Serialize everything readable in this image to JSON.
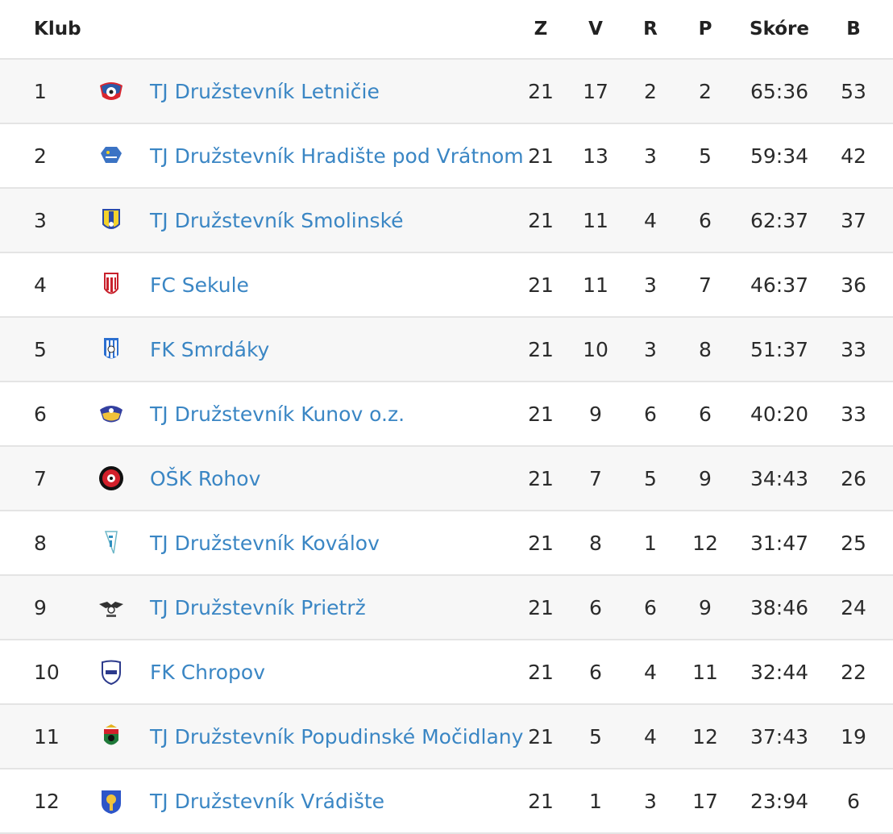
{
  "header": {
    "club": "Klub",
    "z": "Z",
    "v": "V",
    "r": "R",
    "p": "P",
    "score": "Skóre",
    "b": "B"
  },
  "rows": [
    {
      "pos": "1",
      "club": "TJ Družstevník Letničie",
      "z": "21",
      "v": "17",
      "r": "2",
      "p": "2",
      "score": "65:36",
      "b": "53"
    },
    {
      "pos": "2",
      "club": "TJ Družstevník Hradište pod Vrátnom",
      "z": "21",
      "v": "13",
      "r": "3",
      "p": "5",
      "score": "59:34",
      "b": "42"
    },
    {
      "pos": "3",
      "club": "TJ Družstevník Smolinské",
      "z": "21",
      "v": "11",
      "r": "4",
      "p": "6",
      "score": "62:37",
      "b": "37"
    },
    {
      "pos": "4",
      "club": "FC Sekule",
      "z": "21",
      "v": "11",
      "r": "3",
      "p": "7",
      "score": "46:37",
      "b": "36"
    },
    {
      "pos": "5",
      "club": "FK Smrdáky",
      "z": "21",
      "v": "10",
      "r": "3",
      "p": "8",
      "score": "51:37",
      "b": "33"
    },
    {
      "pos": "6",
      "club": "TJ Družstevník Kunov o.z.",
      "z": "21",
      "v": "9",
      "r": "6",
      "p": "6",
      "score": "40:20",
      "b": "33"
    },
    {
      "pos": "7",
      "club": "OŠK Rohov",
      "z": "21",
      "v": "7",
      "r": "5",
      "p": "9",
      "score": "34:43",
      "b": "26"
    },
    {
      "pos": "8",
      "club": "TJ Družstevník Koválov",
      "z": "21",
      "v": "8",
      "r": "1",
      "p": "12",
      "score": "31:47",
      "b": "25"
    },
    {
      "pos": "9",
      "club": "TJ Družstevník Prietrž",
      "z": "21",
      "v": "6",
      "r": "6",
      "p": "9",
      "score": "38:46",
      "b": "24"
    },
    {
      "pos": "10",
      "club": "FK Chropov",
      "z": "21",
      "v": "6",
      "r": "4",
      "p": "11",
      "score": "32:44",
      "b": "22"
    },
    {
      "pos": "11",
      "club": "TJ Družstevník Popudinské Močidlany",
      "z": "21",
      "v": "5",
      "r": "4",
      "p": "12",
      "score": "37:43",
      "b": "19"
    },
    {
      "pos": "12",
      "club": "TJ Družstevník Vrádište",
      "z": "21",
      "v": "1",
      "r": "3",
      "p": "17",
      "score": "23:94",
      "b": "6"
    }
  ],
  "colors": {
    "link": "#3a86c4",
    "stripe": "#f7f7f7",
    "border": "#e4e4e4"
  }
}
